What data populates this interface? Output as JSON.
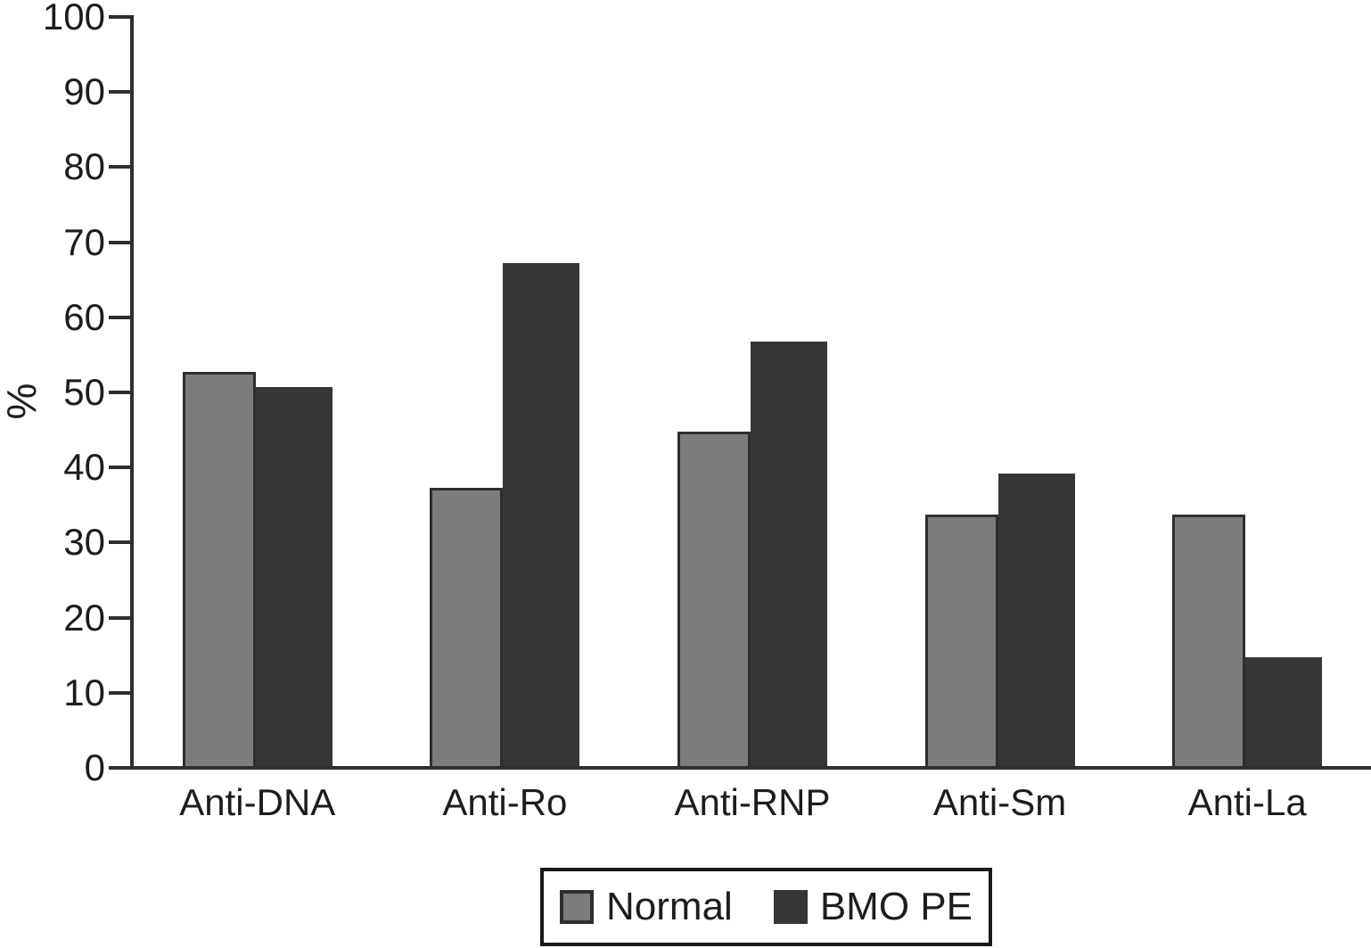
{
  "chart_data": {
    "type": "bar",
    "title": "",
    "xlabel": "",
    "ylabel": "%",
    "ylim": [
      0,
      100
    ],
    "ytick_step": 10,
    "yticks": [
      0,
      10,
      20,
      30,
      40,
      50,
      60,
      70,
      80,
      90,
      100
    ],
    "grid": false,
    "legend_position": "bottom",
    "categories": [
      "Anti-DNA",
      "Anti-Ro",
      "Anti-RNP",
      "Anti-Sm",
      "Anti-La"
    ],
    "series": [
      {
        "name": "Normal",
        "color": "#7c7c7c",
        "values": [
          52.5,
          37,
          44.5,
          33.5,
          33.5
        ]
      },
      {
        "name": "BMO PE",
        "color": "#363636",
        "values": [
          50.5,
          67,
          56.5,
          39,
          14.5
        ]
      }
    ],
    "colors": {
      "axis": "#2e2e2e",
      "text": "#1d1d1d",
      "bar_outline": "#2e2e2e",
      "legend_border": "#1a1a1a"
    }
  }
}
